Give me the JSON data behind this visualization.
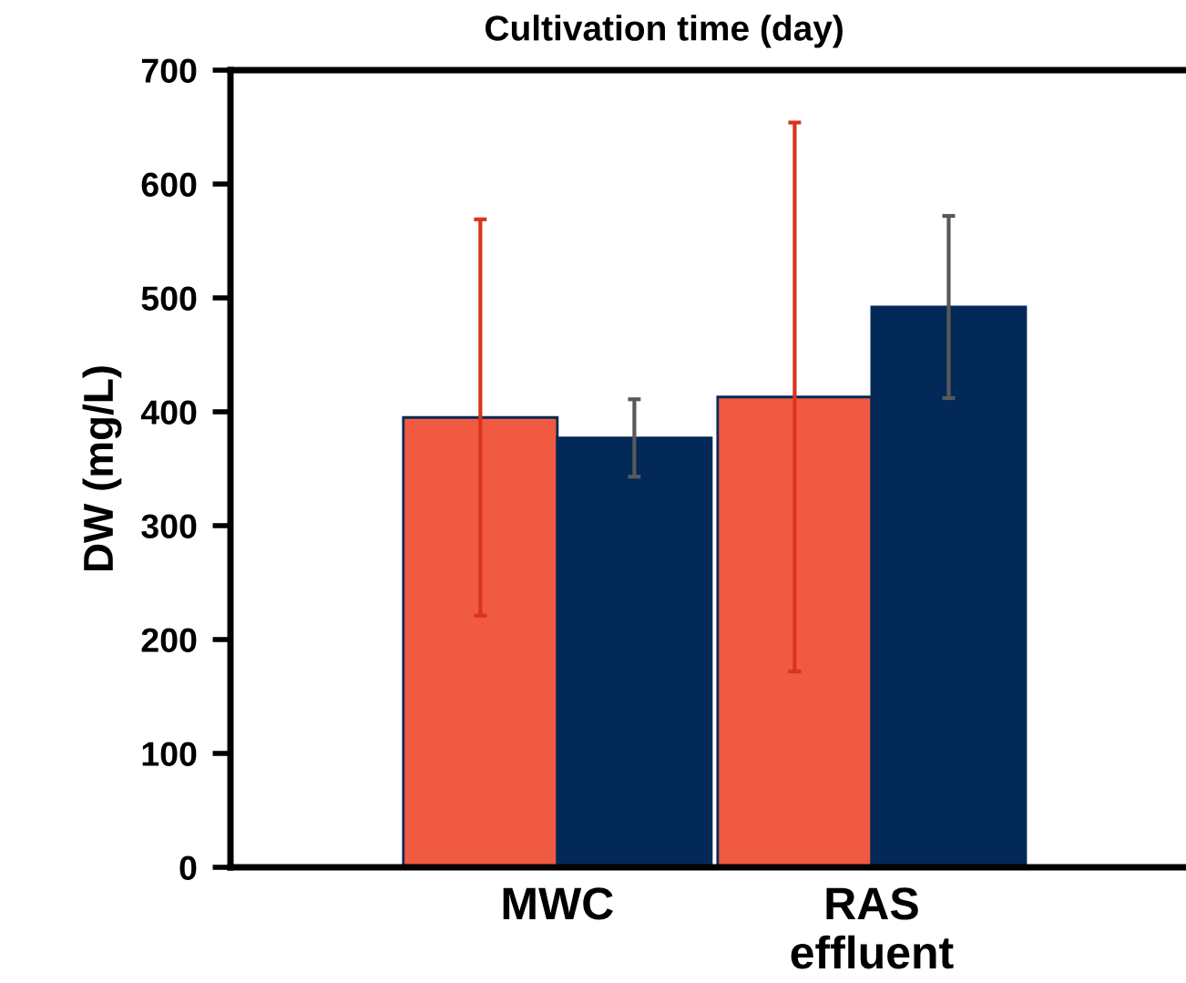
{
  "chart_data": {
    "type": "bar",
    "title": "Cultivation time (day)",
    "ylabel": "DW (mg/L)",
    "categories": [
      "MWC",
      "RAS effluent"
    ],
    "series": [
      {
        "color": "#f05a40",
        "values": [
          395,
          413
        ],
        "errors": [
          174,
          241
        ]
      },
      {
        "color": "#022958",
        "values": [
          377,
          492
        ],
        "errors": [
          34,
          80
        ]
      }
    ],
    "ylim": [
      0,
      700
    ],
    "yticks": [
      0,
      100,
      200,
      300,
      400,
      500,
      600,
      700
    ],
    "grid": false,
    "legend": false
  }
}
